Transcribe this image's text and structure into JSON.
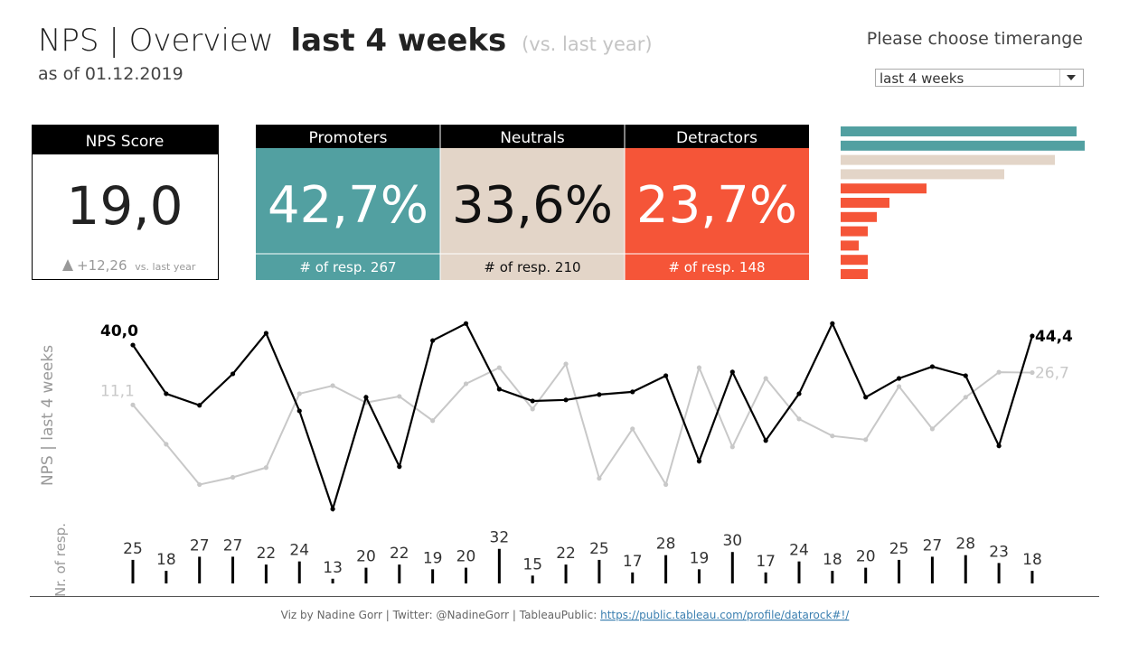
{
  "header": {
    "title": "NPS | Overview",
    "title_bold": "last 4 weeks",
    "title_compare": "(vs. last year)",
    "subtitle": "as of 01.12.2019"
  },
  "timerange": {
    "label": "Please choose timerange",
    "selected": "last 4 weeks"
  },
  "kpi": {
    "title": "NPS Score",
    "value": "19,0",
    "change": "+12,26",
    "change_note": "vs. last year"
  },
  "segments": [
    {
      "name": "Promoters",
      "value": "42,7%",
      "responses": "# of resp. 267",
      "color": "#52a0a1",
      "text_color": "#ffffff"
    },
    {
      "name": "Neutrals",
      "value": "33,6%",
      "responses": "# of resp. 210",
      "color": "#e3d5c8",
      "text_color": "#111111"
    },
    {
      "name": "Detractors",
      "value": "23,7%",
      "responses": "# of resp. 148",
      "color": "#f55538",
      "text_color": "#ffffff"
    }
  ],
  "footer": {
    "text": "Viz by Nadine Gorr | Twitter: @NadineGorr | TableauPublic: ",
    "link": "https://public.tableau.com/profile/datarock#!/"
  },
  "chart_data": [
    {
      "type": "bar",
      "orientation": "horizontal",
      "categories": [
        null,
        null,
        null,
        null,
        null,
        null,
        null,
        null,
        null,
        null,
        null
      ],
      "values": [
        261,
        270,
        237,
        181,
        95,
        54,
        40,
        30,
        20,
        30,
        30
      ],
      "colors": [
        "#52a0a1",
        "#52a0a1",
        "#e3d5c8",
        "#e3d5c8",
        "#f55538",
        "#f55538",
        "#f55538",
        "#f55538",
        "#f55538",
        "#f55538",
        "#f55538"
      ],
      "xlim": [
        0,
        270
      ]
    },
    {
      "type": "line",
      "y_label": "NPS | last 4 weeks",
      "ylim": [
        -42,
        54
      ],
      "series": [
        {
          "name": null,
          "color": "#c8c8c8",
          "values": [
            11.1,
            -7.9,
            -27.4,
            -23.9,
            -19.2,
            16.5,
            20.4,
            12.2,
            15.2,
            3.5,
            21.3,
            29.1,
            9.1,
            30.9,
            -24.4,
            -0.5,
            -27.4,
            29.1,
            -9.2,
            23.9,
            4.3,
            -3.9,
            -5.7,
            20.0,
            -0.5,
            14.8,
            26.9,
            26.7
          ],
          "value_labels": [
            "11,1",
            null,
            null,
            null,
            null,
            null,
            null,
            null,
            null,
            null,
            null,
            null,
            null,
            null,
            null,
            null,
            null,
            null,
            null,
            null,
            null,
            null,
            null,
            null,
            null,
            null,
            null,
            "26,7"
          ]
        },
        {
          "name": null,
          "color": "#000000",
          "values": [
            40.0,
            16.5,
            10.9,
            26.1,
            45.7,
            8.2,
            -39.2,
            14.8,
            -18.7,
            42.2,
            50.4,
            18.7,
            13.0,
            13.5,
            16.1,
            17.4,
            25.2,
            -16.1,
            27.0,
            -6.1,
            16.5,
            50.4,
            14.8,
            23.9,
            29.6,
            25.2,
            -8.7,
            44.4
          ],
          "value_labels": [
            "40,0",
            null,
            null,
            null,
            null,
            null,
            null,
            null,
            null,
            null,
            null,
            null,
            null,
            null,
            null,
            null,
            null,
            null,
            null,
            null,
            null,
            null,
            null,
            null,
            null,
            null,
            null,
            "44,4"
          ]
        }
      ]
    },
    {
      "type": "bar",
      "orientation": "vertical",
      "y_label": "Nr. of resp.",
      "ylim": [
        10,
        33
      ],
      "values": [
        25,
        18,
        27,
        27,
        22,
        24,
        13,
        20,
        22,
        19,
        20,
        32,
        15,
        22,
        25,
        17,
        28,
        19,
        30,
        17,
        24,
        18,
        20,
        25,
        27,
        28,
        23,
        18
      ],
      "color": "#000000"
    }
  ]
}
